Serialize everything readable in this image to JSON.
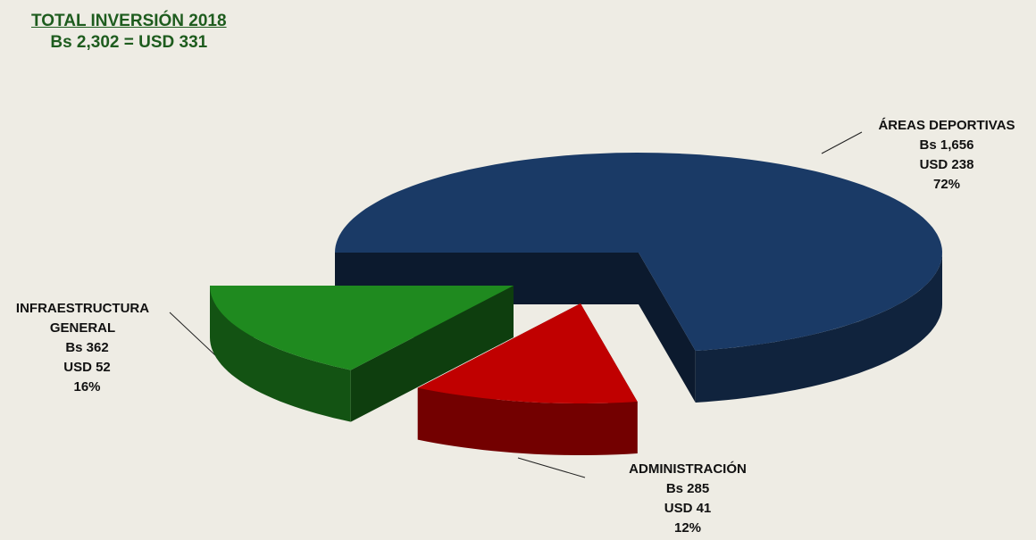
{
  "chart_data": {
    "type": "pie3d",
    "title": "TOTAL INVERSIÓN 2018",
    "subtitle": "Bs 2,302 =  USD 331",
    "categories": [
      "ÁREAS DEPORTIVAS",
      "ADMINISTRACIÓN",
      "INFRAESTRUCTURA GENERAL"
    ],
    "values": [
      72,
      12,
      16
    ],
    "value_labels": [
      "72%",
      "12%",
      "16%"
    ],
    "bs_labels": [
      "Bs 1,656",
      "Bs 285",
      "Bs 362"
    ],
    "usd_labels": [
      "USD 238",
      "USD 41",
      "USD 52"
    ],
    "colors": [
      "#1a3a66",
      "#c00000",
      "#1f8a1f"
    ]
  }
}
